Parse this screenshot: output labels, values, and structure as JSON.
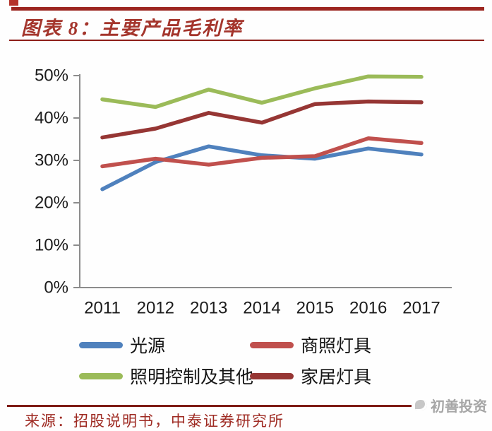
{
  "header": {
    "title": "图表 8：主要产品毛利率",
    "accent_color": "#9c2620"
  },
  "chart_data": {
    "type": "line",
    "title": "主要产品毛利率",
    "x": [
      2011,
      2012,
      2013,
      2014,
      2015,
      2016,
      2017
    ],
    "series": [
      {
        "name": "光源",
        "color": "#4f81bd",
        "values": [
          23.2,
          29.6,
          33.3,
          31.2,
          30.4,
          32.8,
          31.4
        ]
      },
      {
        "name": "商照灯具",
        "color": "#c0504d",
        "values": [
          28.6,
          30.4,
          29.0,
          30.6,
          31.0,
          35.2,
          34.1
        ]
      },
      {
        "name": "照明控制及其他",
        "color": "#9bbb59",
        "values": [
          44.4,
          42.6,
          46.7,
          43.6,
          47.0,
          49.8,
          49.7
        ]
      },
      {
        "name": "家居灯具",
        "color": "#963634",
        "values": [
          35.4,
          37.5,
          41.2,
          38.9,
          43.3,
          43.9,
          43.7
        ]
      }
    ],
    "ylim": [
      0,
      50
    ],
    "ytick_labels": [
      "0%",
      "10%",
      "20%",
      "30%",
      "40%",
      "50%"
    ],
    "ytick_values": [
      0,
      10,
      20,
      30,
      40,
      50
    ],
    "ylabel": "",
    "xlabel": "",
    "grid": false,
    "legend_position": "bottom",
    "axis_color": "#8c8c8c",
    "tick_text_color": "#1c1c1c",
    "line_width": 5.5
  },
  "footer": {
    "source": "来源：招股说明书，中泰证券研究所"
  },
  "watermark": {
    "text": "初善投资"
  }
}
